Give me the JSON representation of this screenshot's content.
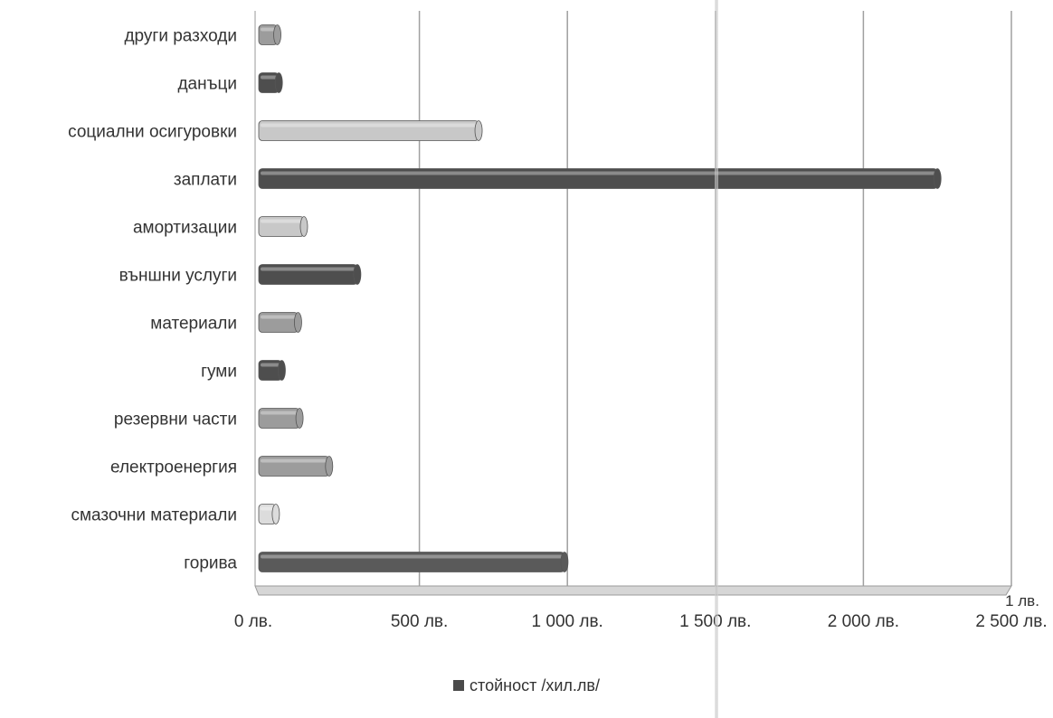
{
  "chart_data": {
    "type": "bar",
    "orientation": "horizontal",
    "categories": [
      "други разходи",
      "данъци",
      "социални осигуровки",
      "заплати",
      "амортизации",
      "външни услуги",
      "материали",
      "гуми",
      "резервни части",
      "електроенергия",
      "смазочни материали",
      "горива"
    ],
    "series": [
      {
        "name": "стойност /хил.лв/",
        "values": [
          20,
          25,
          700,
          2250,
          110,
          290,
          90,
          35,
          95,
          195,
          15,
          990
        ]
      }
    ],
    "bar_colors": [
      "#9c9c9c",
      "#4e4e4e",
      "#c8c8c8",
      "#4e4e4e",
      "#c8c8c8",
      "#4e4e4e",
      "#9c9c9c",
      "#4e4e4e",
      "#9c9c9c",
      "#9c9c9c",
      "#dcdcdc",
      "#5a5a5a"
    ],
    "xlim": [
      0,
      2500
    ],
    "x_ticks": [
      0,
      500,
      1000,
      1500,
      2000,
      2500
    ],
    "x_tick_labels": [
      "0 лв.",
      "500 лв.",
      "1 000 лв.",
      "1 500 лв.",
      "2 000 лв.",
      "2 500 лв."
    ],
    "axis_unit_label": "1 лв.",
    "grid": true,
    "legend_position": "bottom",
    "legend_label": "стойност /хил.лв/"
  }
}
